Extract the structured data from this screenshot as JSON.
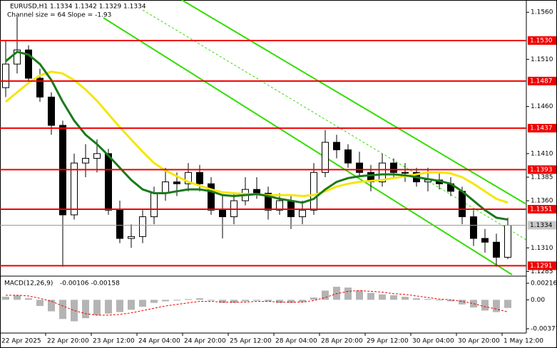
{
  "chart_data": [
    {
      "type": "candlestick",
      "title": "EURUSD,H1",
      "subtitle": "1.1334 1.1342 1.1329 1.1334",
      "annotation": "Channel size = 64 Slope = -1.93",
      "categories": [
        "22 Apr 2025",
        null,
        null,
        null,
        "22 Apr 20:00",
        null,
        null,
        null,
        "23 Apr 12:00",
        null,
        null,
        null,
        "24 Apr 04:00",
        null,
        null,
        null,
        "24 Apr 20:00",
        null,
        null,
        null,
        "25 Apr 12:00",
        null,
        null,
        null,
        "28 Apr 04:00",
        null,
        null,
        null,
        "28 Apr 20:00",
        null,
        null,
        null,
        "29 Apr 12:00",
        null,
        null,
        null,
        "30 Apr 04:00",
        null,
        null,
        null,
        "30 Apr 20:00",
        null,
        null,
        null,
        "1 May 12:00"
      ],
      "open": [
        1.148,
        1.1505,
        1.152,
        1.149,
        1.147,
        1.144,
        1.1345,
        1.14,
        1.1405,
        1.141,
        1.135,
        1.132,
        1.1322,
        1.1343,
        1.1368,
        1.138,
        1.1378,
        1.139,
        1.1378,
        1.135,
        1.1343,
        1.136,
        1.1372,
        1.1368,
        1.135,
        1.136,
        1.1343,
        1.135,
        1.139,
        1.1422,
        1.1414,
        1.14,
        1.139,
        1.138,
        1.14,
        1.139,
        1.139,
        1.138,
        1.1382,
        1.1378,
        1.137,
        1.1343,
        1.132,
        1.1316,
        1.13
      ],
      "high": [
        1.153,
        1.1555,
        1.1525,
        1.15,
        1.1475,
        1.1445,
        1.141,
        1.142,
        1.1425,
        1.1415,
        1.136,
        1.1335,
        1.135,
        1.1375,
        1.1395,
        1.139,
        1.14,
        1.1398,
        1.1385,
        1.1365,
        1.1368,
        1.1385,
        1.1385,
        1.1375,
        1.1368,
        1.1365,
        1.136,
        1.14,
        1.1435,
        1.143,
        1.142,
        1.1412,
        1.1398,
        1.141,
        1.1405,
        1.14,
        1.1395,
        1.1395,
        1.139,
        1.1385,
        1.1375,
        1.135,
        1.133,
        1.1325,
        1.1342
      ],
      "low": [
        1.147,
        1.1495,
        1.1485,
        1.1465,
        1.143,
        1.129,
        1.134,
        1.1385,
        1.139,
        1.1345,
        1.1315,
        1.131,
        1.1315,
        1.1335,
        1.136,
        1.1365,
        1.137,
        1.137,
        1.1345,
        1.132,
        1.1335,
        1.1355,
        1.1362,
        1.134,
        1.1345,
        1.133,
        1.1335,
        1.1345,
        1.1385,
        1.1405,
        1.1395,
        1.1385,
        1.137,
        1.1375,
        1.1385,
        1.138,
        1.1375,
        1.137,
        1.1372,
        1.1365,
        1.1335,
        1.1312,
        1.1305,
        1.129,
        1.1298
      ],
      "close": [
        1.1505,
        1.152,
        1.149,
        1.147,
        1.144,
        1.1345,
        1.14,
        1.1405,
        1.141,
        1.135,
        1.132,
        1.1322,
        1.1343,
        1.1368,
        1.138,
        1.1378,
        1.139,
        1.1378,
        1.135,
        1.1343,
        1.136,
        1.1372,
        1.1368,
        1.135,
        1.136,
        1.1343,
        1.135,
        1.139,
        1.1422,
        1.1414,
        1.14,
        1.139,
        1.138,
        1.14,
        1.139,
        1.139,
        1.138,
        1.1382,
        1.1378,
        1.137,
        1.1343,
        1.132,
        1.1316,
        1.13,
        1.1334
      ],
      "series": [
        {
          "color": "#f5e60a",
          "values": [
            1.1465,
            1.1475,
            1.1485,
            1.1493,
            1.1497,
            1.1495,
            1.1488,
            1.1478,
            1.1466,
            1.1452,
            1.1438,
            1.1425,
            1.1412,
            1.14,
            1.1392,
            1.1386,
            1.138,
            1.1376,
            1.1372,
            1.1369,
            1.1368,
            1.1367,
            1.1367,
            1.1366,
            1.1366,
            1.1366,
            1.1365,
            1.1366,
            1.137,
            1.1375,
            1.1378,
            1.138,
            1.1381,
            1.1382,
            1.1384,
            1.1386,
            1.1388,
            1.139,
            1.139,
            1.1389,
            1.1385,
            1.1378,
            1.137,
            1.1362,
            1.1358
          ]
        },
        {
          "color": "#1a7a1a",
          "values": [
            1.1508,
            1.1518,
            1.1515,
            1.1505,
            1.1488,
            1.1465,
            1.1445,
            1.143,
            1.142,
            1.1408,
            1.1395,
            1.1382,
            1.1372,
            1.1368,
            1.1368,
            1.137,
            1.1372,
            1.1372,
            1.137,
            1.1366,
            1.1365,
            1.1366,
            1.1367,
            1.1365,
            1.1362,
            1.136,
            1.1358,
            1.1362,
            1.1372,
            1.138,
            1.1384,
            1.1386,
            1.1387,
            1.1388,
            1.1388,
            1.1387,
            1.1385,
            1.1383,
            1.1381,
            1.1378,
            1.137,
            1.136,
            1.135,
            1.1342,
            1.134
          ]
        }
      ],
      "levels": [
        {
          "value": 1.153,
          "label": "1.1530"
        },
        {
          "value": 1.1487,
          "label": "1.1487"
        },
        {
          "value": 1.1437,
          "label": "1.1437"
        },
        {
          "value": 1.1393,
          "label": "1.1393"
        },
        {
          "value": 1.1351,
          "label": "1.1351"
        },
        {
          "value": 1.1291,
          "label": "1.1291"
        }
      ],
      "level_color": "#ee0000",
      "current_price": {
        "value": 1.1334,
        "label": "1.1334"
      },
      "ylim": [
        1.128,
        1.1573
      ],
      "yticks": [
        {
          "value": 1.156,
          "label": "1.1560"
        },
        {
          "value": 1.151,
          "label": "1.1510"
        },
        {
          "value": 1.146,
          "label": "1.1460"
        },
        {
          "value": 1.141,
          "label": "1.1410"
        },
        {
          "value": 1.1385,
          "label": "1.1385"
        },
        {
          "value": 1.136,
          "label": "1.1360"
        },
        {
          "value": 1.131,
          "label": "1.1310"
        },
        {
          "value": 1.1285,
          "label": "1.1285"
        }
      ]
    },
    {
      "type": "macd",
      "title": "MACD(12,26,9)",
      "subtitle": "-0.00106 -0.00158",
      "values": [
        0.0004,
        0.0006,
        0.0002,
        -0.0008,
        -0.0015,
        -0.0025,
        -0.0028,
        -0.0024,
        -0.002,
        -0.0018,
        -0.0016,
        -0.0013,
        -0.0009,
        -0.0004,
        -0.0002,
        -0.0001,
        0.0001,
        0.0002,
        -0.0001,
        -0.0004,
        -0.0004,
        -0.0002,
        -0.0001,
        -0.0002,
        -0.0004,
        -0.0004,
        -0.0003,
        0.0003,
        0.0012,
        0.0017,
        0.0016,
        0.0012,
        0.0009,
        0.0007,
        0.0006,
        0.0004,
        0.0002,
        0.0001,
        -0.0001,
        -0.0002,
        -0.0006,
        -0.001,
        -0.0014,
        -0.0016,
        -0.00106
      ],
      "signal": [
        0.0006,
        0.0006,
        0.0005,
        0.0002,
        -0.0002,
        -0.0008,
        -0.0014,
        -0.0018,
        -0.002,
        -0.002,
        -0.0019,
        -0.0017,
        -0.0014,
        -0.0011,
        -0.0008,
        -0.0006,
        -0.0004,
        -0.0002,
        -0.0002,
        -0.0003,
        -0.0003,
        -0.0003,
        -0.0002,
        -0.0002,
        -0.0003,
        -0.0003,
        -0.0003,
        -0.0001,
        0.0003,
        0.0008,
        0.0011,
        0.0012,
        0.0011,
        0.001,
        0.0008,
        0.0007,
        0.0005,
        0.0003,
        0.0001,
        0.0,
        -0.0002,
        -0.0005,
        -0.0009,
        -0.0012,
        -0.00158
      ],
      "color": "#b4b4b4",
      "signal_color": "#ee0000",
      "ylim": [
        -0.00433,
        0.0029
      ],
      "yticks": [
        0.00216,
        {
          "value": 0,
          "label": "0.00"
        },
        -0.00377
      ]
    }
  ]
}
